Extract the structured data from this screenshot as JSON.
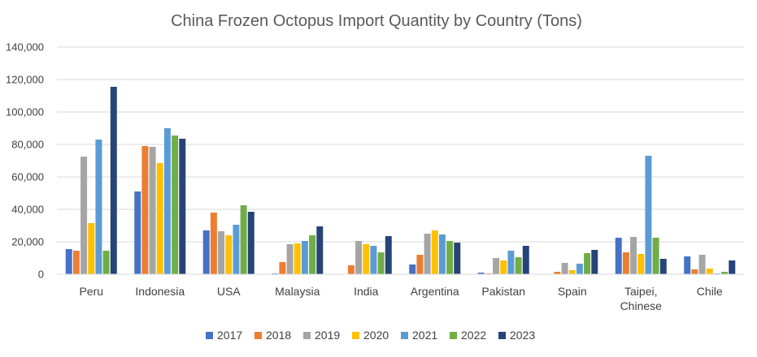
{
  "chart_data": {
    "type": "bar",
    "title": "China  Frozen Octopus Import Quantity by Country (Tons)",
    "xlabel": "",
    "ylabel": "",
    "ylim": [
      0,
      140000
    ],
    "yticks": [
      0,
      20000,
      40000,
      60000,
      80000,
      100000,
      120000,
      140000
    ],
    "ytick_labels": [
      "0",
      "20,000",
      "40,000",
      "60,000",
      "80,000",
      "100,000",
      "120,000",
      "140,000"
    ],
    "grid": true,
    "legend_position": "bottom",
    "categories": [
      [
        "Peru"
      ],
      [
        "Indonesia"
      ],
      [
        "USA"
      ],
      [
        "Malaysia"
      ],
      [
        "India"
      ],
      [
        "Argentina"
      ],
      [
        "Pakistan"
      ],
      [
        "Spain"
      ],
      [
        "Taipei,",
        "Chinese"
      ],
      [
        "Chile"
      ]
    ],
    "series": [
      {
        "name": "2017",
        "color": "#4472c4",
        "values": [
          15500,
          51000,
          27000,
          500,
          0,
          6000,
          1000,
          0,
          22500,
          11000
        ]
      },
      {
        "name": "2018",
        "color": "#ed7d31",
        "values": [
          14500,
          79000,
          38000,
          7500,
          5500,
          12000,
          500,
          1500,
          13500,
          3000
        ]
      },
      {
        "name": "2019",
        "color": "#a5a5a5",
        "values": [
          72500,
          78500,
          26500,
          18500,
          20500,
          25000,
          10000,
          7000,
          23000,
          12000
        ]
      },
      {
        "name": "2020",
        "color": "#ffc000",
        "values": [
          31500,
          68500,
          24000,
          19000,
          18500,
          27000,
          8500,
          2500,
          12500,
          3500
        ]
      },
      {
        "name": "2021",
        "color": "#5b9bd5",
        "values": [
          83000,
          90000,
          30500,
          20500,
          17500,
          24500,
          14500,
          6500,
          73000,
          500
        ]
      },
      {
        "name": "2022",
        "color": "#70ad47",
        "values": [
          14500,
          85500,
          42500,
          24000,
          13500,
          20500,
          10500,
          13000,
          22500,
          1500
        ]
      },
      {
        "name": "2023",
        "color": "#264478",
        "values": [
          115500,
          83500,
          38500,
          29500,
          23500,
          19500,
          17500,
          15000,
          9500,
          8500
        ]
      }
    ]
  }
}
